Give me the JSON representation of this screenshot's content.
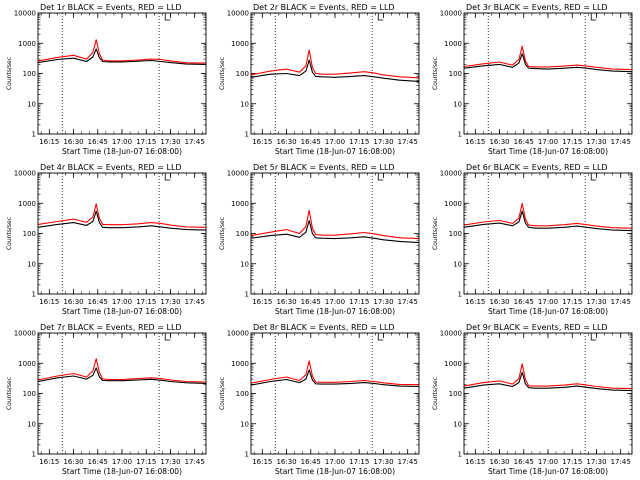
{
  "figure": {
    "colors": {
      "events": "#000000",
      "lld": "#ff0000",
      "axis": "#000000",
      "background": "#ffffff"
    }
  },
  "chart_data": [
    {
      "type": "line",
      "title": "Det 1r BLACK = Events, RED = LLD",
      "xlabel": "Start Time (18-Jun-07 16:08:00)",
      "ylabel": "Counts/sec",
      "x_unit": "UT time of day",
      "xlim": [
        "16:08",
        "17:52"
      ],
      "ylim": [
        1,
        10000
      ],
      "y_scale": "log",
      "x_ticks": [
        "16:15",
        "16:30",
        "16:45",
        "17:00",
        "17:15",
        "17:30",
        "17:45"
      ],
      "y_ticks": [
        "1",
        "10",
        "100",
        "1000",
        "10000"
      ],
      "x": [
        "16:08",
        "16:20",
        "16:30",
        "16:38",
        "16:42",
        "16:44",
        "16:46",
        "16:48",
        "16:52",
        "17:00",
        "17:10",
        "17:18",
        "17:24",
        "17:30",
        "17:40",
        "17:52"
      ],
      "series": [
        {
          "color": "#000000",
          "values": [
            230,
            290,
            320,
            250,
            350,
            650,
            330,
            250,
            240,
            240,
            255,
            270,
            250,
            230,
            205,
            200
          ]
        },
        {
          "color": "#ff0000",
          "values": [
            260,
            340,
            400,
            300,
            500,
            1300,
            450,
            280,
            260,
            260,
            280,
            300,
            290,
            260,
            225,
            220
          ]
        }
      ],
      "reference_lines_x": [
        "16:23",
        "17:23"
      ],
      "marker": "tick at top edge near 17:28"
    },
    {
      "type": "line",
      "title": "Det 2r BLACK = Events, RED = LLD",
      "xlabel": "Start Time (18-Jun-07 16:08:00)",
      "ylabel": "Counts/sec",
      "x_unit": "UT time of day",
      "xlim": [
        "16:08",
        "17:52"
      ],
      "ylim": [
        1,
        10000
      ],
      "y_scale": "log",
      "x_ticks": [
        "16:15",
        "16:30",
        "16:45",
        "17:00",
        "17:15",
        "17:30",
        "17:45"
      ],
      "y_ticks": [
        "1",
        "10",
        "100",
        "1000",
        "10000"
      ],
      "x": [
        "16:08",
        "16:20",
        "16:30",
        "16:38",
        "16:42",
        "16:44",
        "16:46",
        "16:48",
        "16:52",
        "17:00",
        "17:10",
        "17:18",
        "17:24",
        "17:30",
        "17:40",
        "17:52"
      ],
      "series": [
        {
          "color": "#000000",
          "values": [
            75,
            95,
            100,
            85,
            120,
            280,
            110,
            80,
            78,
            75,
            80,
            85,
            78,
            70,
            60,
            55
          ]
        },
        {
          "color": "#ff0000",
          "values": [
            90,
            120,
            140,
            110,
            180,
            600,
            160,
            100,
            95,
            95,
            105,
            115,
            105,
            90,
            78,
            72
          ]
        }
      ],
      "reference_lines_x": [
        "16:23",
        "17:23"
      ],
      "marker": "tick at top edge near 17:28"
    },
    {
      "type": "line",
      "title": "Det 3r BLACK = Events, RED = LLD",
      "xlabel": "Start Time (18-Jun-07 16:08:00)",
      "ylabel": "Counts/sec",
      "x_unit": "UT time of day",
      "xlim": [
        "16:08",
        "17:52"
      ],
      "ylim": [
        1,
        10000
      ],
      "y_scale": "log",
      "x_ticks": [
        "16:15",
        "16:30",
        "16:45",
        "17:00",
        "17:15",
        "17:30",
        "17:45"
      ],
      "y_ticks": [
        "1",
        "10",
        "100",
        "1000",
        "10000"
      ],
      "x": [
        "16:08",
        "16:20",
        "16:30",
        "16:38",
        "16:42",
        "16:44",
        "16:46",
        "16:48",
        "16:52",
        "17:00",
        "17:10",
        "17:18",
        "17:24",
        "17:30",
        "17:40",
        "17:52"
      ],
      "series": [
        {
          "color": "#000000",
          "values": [
            150,
            180,
            200,
            160,
            220,
            450,
            200,
            150,
            145,
            140,
            150,
            160,
            150,
            135,
            120,
            115
          ]
        },
        {
          "color": "#ff0000",
          "values": [
            170,
            210,
            240,
            190,
            290,
            800,
            260,
            170,
            165,
            165,
            175,
            190,
            175,
            160,
            140,
            135
          ]
        }
      ],
      "reference_lines_x": [
        "16:23",
        "17:23"
      ],
      "marker": "tick at top edge near 17:28"
    },
    {
      "type": "line",
      "title": "Det 4r BLACK = Events, RED = LLD",
      "xlabel": "Start Time (18-Jun-07 16:08:00)",
      "ylabel": "Counts/sec",
      "x_unit": "UT time of day",
      "xlim": [
        "16:08",
        "17:52"
      ],
      "ylim": [
        1,
        10000
      ],
      "y_scale": "log",
      "x_ticks": [
        "16:15",
        "16:30",
        "16:45",
        "17:00",
        "17:15",
        "17:30",
        "17:45"
      ],
      "y_ticks": [
        "1",
        "10",
        "100",
        "1000",
        "10000"
      ],
      "x": [
        "16:08",
        "16:20",
        "16:30",
        "16:38",
        "16:42",
        "16:44",
        "16:46",
        "16:48",
        "16:52",
        "17:00",
        "17:10",
        "17:18",
        "17:24",
        "17:30",
        "17:40",
        "17:52"
      ],
      "series": [
        {
          "color": "#000000",
          "values": [
            160,
            200,
            230,
            185,
            250,
            550,
            230,
            160,
            155,
            155,
            165,
            180,
            165,
            150,
            135,
            130
          ]
        },
        {
          "color": "#ff0000",
          "values": [
            200,
            250,
            300,
            235,
            350,
            950,
            320,
            200,
            195,
            195,
            210,
            230,
            215,
            190,
            165,
            160
          ]
        }
      ],
      "reference_lines_x": [
        "16:23",
        "17:23"
      ],
      "marker": "tick at top edge near 17:28"
    },
    {
      "type": "line",
      "title": "Det 5r BLACK = Events, RED = LLD",
      "xlabel": "Start Time (18-Jun-07 16:08:00)",
      "ylabel": "Counts/sec",
      "x_unit": "UT time of day",
      "xlim": [
        "16:08",
        "17:52"
      ],
      "ylim": [
        1,
        10000
      ],
      "y_scale": "log",
      "x_ticks": [
        "16:15",
        "16:30",
        "16:45",
        "17:00",
        "17:15",
        "17:30",
        "17:45"
      ],
      "y_ticks": [
        "1",
        "10",
        "100",
        "1000",
        "10000"
      ],
      "x": [
        "16:08",
        "16:20",
        "16:30",
        "16:38",
        "16:42",
        "16:44",
        "16:46",
        "16:48",
        "16:52",
        "17:00",
        "17:10",
        "17:18",
        "17:24",
        "17:30",
        "17:40",
        "17:52"
      ],
      "series": [
        {
          "color": "#000000",
          "values": [
            70,
            85,
            95,
            75,
            110,
            270,
            100,
            72,
            70,
            68,
            72,
            78,
            70,
            62,
            55,
            50
          ]
        },
        {
          "color": "#ff0000",
          "values": [
            85,
            110,
            135,
            100,
            170,
            580,
            150,
            92,
            88,
            88,
            98,
            108,
            98,
            85,
            72,
            68
          ]
        }
      ],
      "reference_lines_x": [
        "16:23",
        "17:23"
      ],
      "marker": "tick at top edge near 17:28"
    },
    {
      "type": "line",
      "title": "Det 6r BLACK = Events, RED = LLD",
      "xlabel": "Start Time (18-Jun-07 16:08:00)",
      "ylabel": "Counts/sec",
      "x_unit": "UT time of day",
      "xlim": [
        "16:08",
        "17:52"
      ],
      "ylim": [
        1,
        10000
      ],
      "y_scale": "log",
      "x_ticks": [
        "16:15",
        "16:30",
        "16:45",
        "17:00",
        "17:15",
        "17:30",
        "17:45"
      ],
      "y_ticks": [
        "1",
        "10",
        "100",
        "1000",
        "10000"
      ],
      "x": [
        "16:08",
        "16:20",
        "16:30",
        "16:38",
        "16:42",
        "16:44",
        "16:46",
        "16:48",
        "16:52",
        "17:00",
        "17:10",
        "17:18",
        "17:24",
        "17:30",
        "17:40",
        "17:52"
      ],
      "series": [
        {
          "color": "#000000",
          "values": [
            160,
            200,
            220,
            180,
            240,
            550,
            220,
            160,
            150,
            150,
            160,
            175,
            160,
            145,
            130,
            125
          ]
        },
        {
          "color": "#ff0000",
          "values": [
            190,
            240,
            270,
            215,
            320,
            1000,
            300,
            190,
            180,
            180,
            195,
            215,
            195,
            175,
            155,
            150
          ]
        }
      ],
      "reference_lines_x": [
        "16:23",
        "17:23"
      ],
      "marker": "tick at top edge near 17:28"
    },
    {
      "type": "line",
      "title": "Det 7r BLACK = Events, RED = LLD",
      "xlabel": "Start Time (18-Jun-07 16:08:00)",
      "ylabel": "Counts/sec",
      "x_unit": "UT time of day",
      "xlim": [
        "16:08",
        "17:52"
      ],
      "ylim": [
        1,
        10000
      ],
      "y_scale": "log",
      "x_ticks": [
        "16:15",
        "16:30",
        "16:45",
        "17:00",
        "17:15",
        "17:30",
        "17:45"
      ],
      "y_ticks": [
        "1",
        "10",
        "100",
        "1000",
        "10000"
      ],
      "x": [
        "16:08",
        "16:20",
        "16:30",
        "16:38",
        "16:42",
        "16:44",
        "16:46",
        "16:48",
        "16:52",
        "17:00",
        "17:10",
        "17:18",
        "17:24",
        "17:30",
        "17:40",
        "17:52"
      ],
      "series": [
        {
          "color": "#000000",
          "values": [
            250,
            330,
            380,
            300,
            400,
            700,
            350,
            270,
            265,
            265,
            280,
            295,
            275,
            250,
            225,
            215
          ]
        },
        {
          "color": "#ff0000",
          "values": [
            280,
            380,
            460,
            350,
            560,
            1400,
            500,
            300,
            290,
            290,
            310,
            330,
            310,
            280,
            250,
            240
          ]
        }
      ],
      "reference_lines_x": [
        "16:23",
        "17:23"
      ],
      "marker": "tick at top edge near 17:28"
    },
    {
      "type": "line",
      "title": "Det 8r BLACK = Events, RED = LLD",
      "xlabel": "Start Time (18-Jun-07 16:08:00)",
      "ylabel": "Counts/sec",
      "x_unit": "UT time of day",
      "xlim": [
        "16:08",
        "17:52"
      ],
      "ylim": [
        1,
        10000
      ],
      "y_scale": "log",
      "x_ticks": [
        "16:15",
        "16:30",
        "16:45",
        "17:00",
        "17:15",
        "17:30",
        "17:45"
      ],
      "y_ticks": [
        "1",
        "10",
        "100",
        "1000",
        "10000"
      ],
      "x": [
        "16:08",
        "16:20",
        "16:30",
        "16:38",
        "16:42",
        "16:44",
        "16:46",
        "16:48",
        "16:52",
        "17:00",
        "17:10",
        "17:18",
        "17:24",
        "17:30",
        "17:40",
        "17:52"
      ],
      "series": [
        {
          "color": "#000000",
          "values": [
            190,
            250,
            290,
            230,
            300,
            600,
            280,
            210,
            205,
            205,
            215,
            230,
            215,
            195,
            175,
            170
          ]
        },
        {
          "color": "#ff0000",
          "values": [
            220,
            290,
            350,
            270,
            420,
            1200,
            380,
            240,
            235,
            235,
            250,
            270,
            250,
            225,
            200,
            195
          ]
        }
      ],
      "reference_lines_x": [
        "16:23",
        "17:23"
      ],
      "marker": "tick at top edge near 17:28"
    },
    {
      "type": "line",
      "title": "Det 9r BLACK = Events, RED = LLD",
      "xlabel": "Start Time (18-Jun-07 16:08:00)",
      "ylabel": "Counts/sec",
      "x_unit": "UT time of day",
      "xlim": [
        "16:08",
        "17:52"
      ],
      "ylim": [
        1,
        10000
      ],
      "y_scale": "log",
      "x_ticks": [
        "16:15",
        "16:30",
        "16:45",
        "17:00",
        "17:15",
        "17:30",
        "17:45"
      ],
      "y_ticks": [
        "1",
        "10",
        "100",
        "1000",
        "10000"
      ],
      "x": [
        "16:08",
        "16:20",
        "16:30",
        "16:38",
        "16:42",
        "16:44",
        "16:46",
        "16:48",
        "16:52",
        "17:00",
        "17:10",
        "17:18",
        "17:24",
        "17:30",
        "17:40",
        "17:52"
      ],
      "series": [
        {
          "color": "#000000",
          "values": [
            150,
            190,
            210,
            170,
            230,
            500,
            210,
            155,
            150,
            150,
            160,
            175,
            160,
            145,
            130,
            125
          ]
        },
        {
          "color": "#ff0000",
          "values": [
            175,
            230,
            260,
            205,
            310,
            950,
            290,
            180,
            175,
            175,
            190,
            210,
            190,
            170,
            150,
            145
          ]
        }
      ],
      "reference_lines_x": [
        "16:23",
        "17:23"
      ],
      "marker": "tick at top edge near 17:28"
    }
  ]
}
